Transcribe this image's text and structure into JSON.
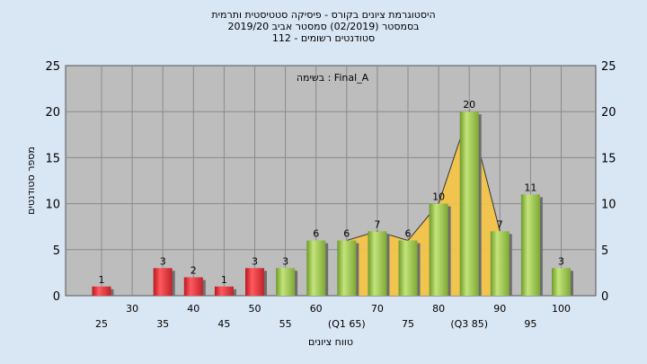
{
  "header": {
    "title_line1": "היסטוגרמת ציונים בקורס - פיסיקה סטטיסטית ותרמית",
    "title_line2": "בסמסטר  (02/2019)  סמסטר אביב 2019/20",
    "title_line3": "סטודנטים רשומים - 112"
  },
  "chart_data": {
    "type": "bar",
    "subtitle": "בשימה : Final_A",
    "ylabel": "מספר סטודנטים",
    "xlabel": "טווח ציונים",
    "ylim": [
      0,
      25
    ],
    "yticks": [
      0,
      5,
      10,
      15,
      20,
      25
    ],
    "grid": true,
    "categories": [
      "25",
      "30",
      "35",
      "40",
      "45",
      "50",
      "55",
      "60",
      "(Q1 65)",
      "70",
      "75",
      "80",
      "(Q3 85)",
      "90",
      "95",
      "100"
    ],
    "values": [
      1,
      0,
      3,
      2,
      1,
      3,
      3,
      6,
      6,
      7,
      6,
      10,
      20,
      7,
      11,
      3
    ],
    "failing_categories_count": 6,
    "curve": {
      "type": "area",
      "color": "#f6c343",
      "points": [
        [
          8,
          6
        ],
        [
          9,
          7
        ],
        [
          10,
          6
        ],
        [
          11,
          10
        ],
        [
          12,
          20
        ],
        [
          13,
          7
        ]
      ]
    },
    "colors": {
      "fail_bar": "#e8343a",
      "pass_bar": "#9ccc4c",
      "plot_background": "#bdbdbd",
      "page_background": "#d9e6f4"
    }
  }
}
